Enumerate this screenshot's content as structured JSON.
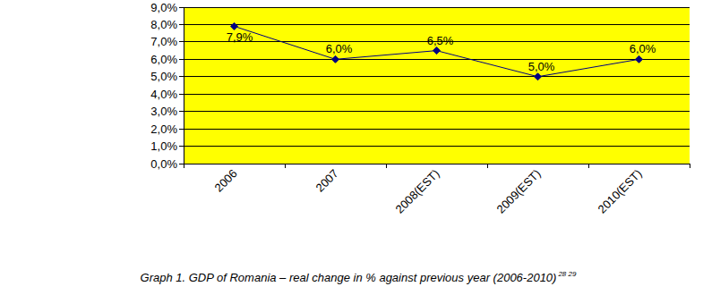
{
  "chart_data": {
    "type": "line",
    "title": "Graph 1. GDP of Romania – real change in % against previous year (2006-2010)",
    "annotations": [
      "28 29"
    ],
    "categories": [
      "2006",
      "2007",
      "2008(EST)",
      "2009(EST)",
      "2010(EST)"
    ],
    "values": [
      7.9,
      6.0,
      6.5,
      5.0,
      6.0
    ],
    "value_labels": [
      "7,9%",
      "6,0%",
      "6,5%",
      "5,0%",
      "6,0%"
    ],
    "color": "#000080",
    "marker": "diamond",
    "line_style": "solid",
    "data_labels": true,
    "grid": true,
    "ylim": [
      0,
      9
    ],
    "yticks": [
      {
        "value": 0,
        "label": "0,0%"
      },
      {
        "value": 1,
        "label": "1,0%"
      },
      {
        "value": 2,
        "label": "2,0%"
      },
      {
        "value": 3,
        "label": "3,0%"
      },
      {
        "value": 4,
        "label": "4,0%"
      },
      {
        "value": 5,
        "label": "5,0%"
      },
      {
        "value": 6,
        "label": "6,0%"
      },
      {
        "value": 7,
        "label": "7,0%"
      },
      {
        "value": 8,
        "label": "8,0%"
      },
      {
        "value": 9,
        "label": "9,0%"
      }
    ]
  }
}
